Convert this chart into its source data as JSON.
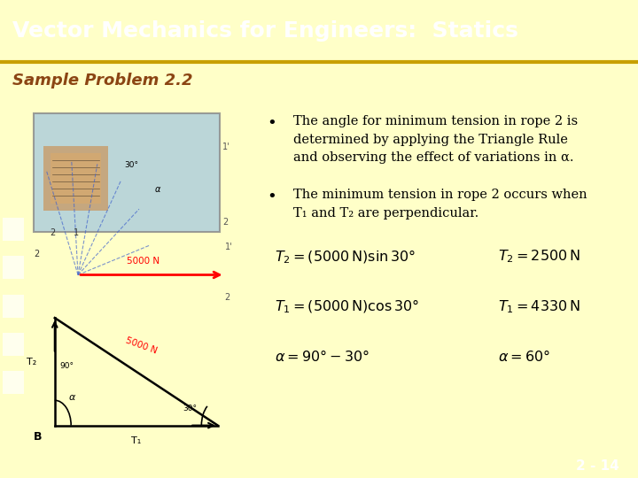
{
  "title": "Vector Mechanics for Engineers:  Statics",
  "subtitle": "Sample Problem 2.2",
  "title_bg": "#7B1C1C",
  "subtitle_bg": "#FFFFAA",
  "main_bg": "#FFFFC8",
  "title_color": "#FFFFFF",
  "subtitle_color": "#8B4513",
  "bullet1_line1": "The angle for minimum tension in rope 2 is",
  "bullet1_line2": "determined by applying the Triangle Rule",
  "bullet1_line3": "and observing the effect of variations in α.",
  "bullet2_line1": "The minimum tension in rope 2 occurs when",
  "bullet2_line2": "T₁ and T₂ are perpendicular.",
  "page_num": "2 - 14",
  "nav_bg": "#8B1A1A",
  "separator_color": "#C8A000"
}
